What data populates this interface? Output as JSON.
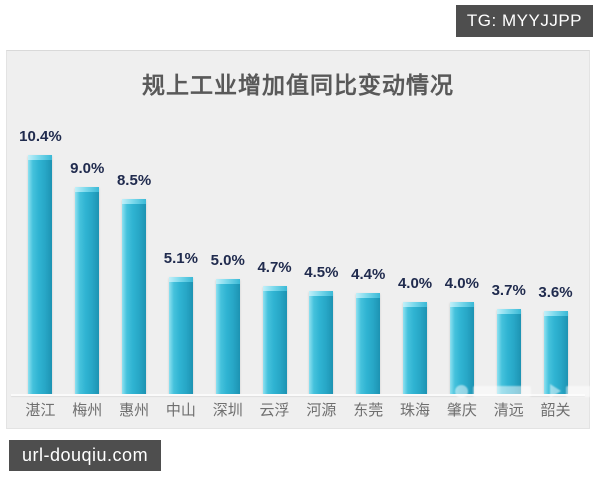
{
  "badges": {
    "top_right": "TG: MYYJJPP",
    "bottom_left": "url-douqiu.com",
    "badge_bg": "#4e4e4e",
    "badge_text_color": "#ffffff"
  },
  "chart_data": {
    "type": "bar",
    "title": "规上工业增加值同比变动情况",
    "categories": [
      "湛江",
      "梅州",
      "惠州",
      "中山",
      "深圳",
      "云浮",
      "河源",
      "东莞",
      "珠海",
      "肇庆",
      "清远",
      "韶关"
    ],
    "values": [
      10.4,
      9.0,
      8.5,
      5.1,
      5.0,
      4.7,
      4.5,
      4.4,
      4.0,
      4.0,
      3.7,
      3.6
    ],
    "data_labels": [
      "10.4%",
      "9.0%",
      "8.5%",
      "5.1%",
      "5.0%",
      "4.7%",
      "4.5%",
      "4.4%",
      "4.0%",
      "4.0%",
      "3.7%",
      "3.6%"
    ],
    "unit": "%",
    "xlabel": "",
    "ylabel": "",
    "ylim": [
      0,
      11
    ],
    "grid": false,
    "legend": false,
    "data_labels_position": "above-bars",
    "colors": {
      "panel_bg": "#efefef",
      "bar_main": "#2fb3d2",
      "bar_highlight": "#8fe1f1",
      "bar_shadow_edge": "#1d93b2",
      "value_label": "#202b4e",
      "category_label": "#6f6f6f",
      "title": "#595959"
    }
  }
}
